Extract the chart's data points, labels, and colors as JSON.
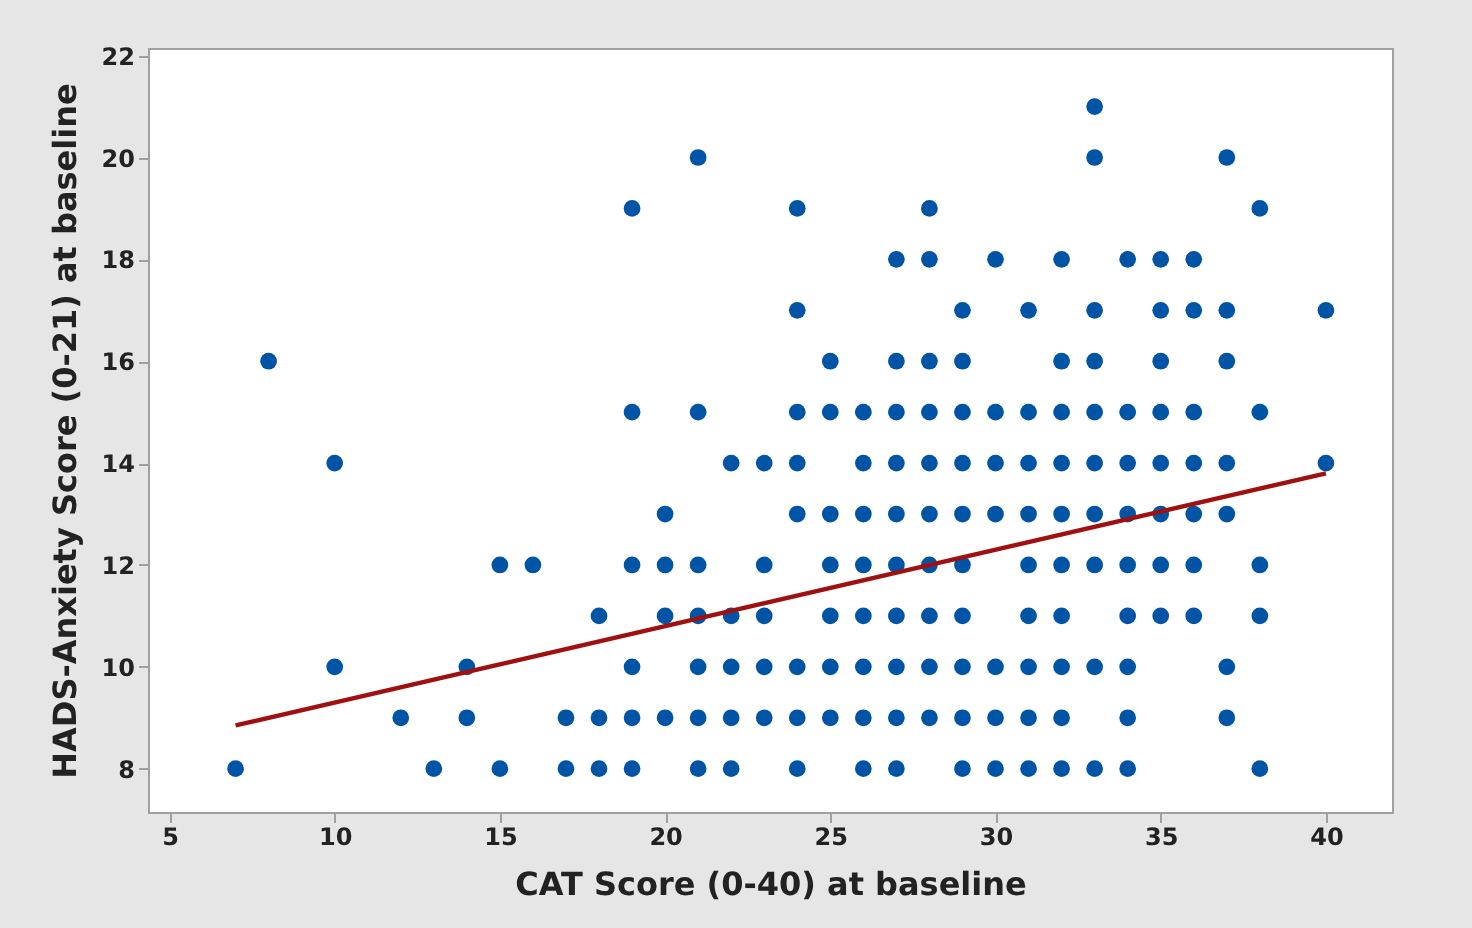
{
  "chart_data": {
    "type": "scatter",
    "xlabel": "CAT Score (0-40)  at baseline",
    "ylabel": "HADS-Anxiety Score (0-21) at baseline",
    "xlim": [
      4.35,
      42
    ],
    "xticks": [
      5,
      10,
      15,
      20,
      25,
      30,
      35,
      40
    ],
    "ylim": [
      7.15,
      22.15
    ],
    "yticks": [
      8,
      10,
      12,
      14,
      16,
      18,
      20,
      22
    ],
    "grid": false,
    "series": [
      {
        "color": "#0054a6",
        "marker": "circle",
        "x": [
          7,
          8,
          10,
          10,
          12,
          13,
          14,
          14,
          15,
          15,
          16,
          17,
          17,
          18,
          18,
          18,
          19,
          19,
          19,
          19,
          19,
          19,
          20,
          20,
          20,
          20,
          21,
          21,
          21,
          21,
          21,
          21,
          21,
          22,
          22,
          22,
          22,
          22,
          23,
          23,
          23,
          23,
          23,
          24,
          24,
          24,
          24,
          24,
          24,
          24,
          24,
          25,
          25,
          25,
          25,
          25,
          25,
          25,
          26,
          26,
          26,
          26,
          26,
          26,
          26,
          26,
          27,
          27,
          27,
          27,
          27,
          27,
          27,
          27,
          27,
          27,
          28,
          28,
          28,
          28,
          28,
          28,
          28,
          28,
          28,
          28,
          29,
          29,
          29,
          29,
          29,
          29,
          29,
          29,
          29,
          29,
          30,
          30,
          30,
          30,
          30,
          30,
          30,
          31,
          31,
          31,
          31,
          31,
          31,
          31,
          31,
          31,
          32,
          32,
          32,
          32,
          32,
          32,
          32,
          32,
          32,
          32,
          33,
          33,
          33,
          33,
          33,
          33,
          33,
          33,
          33,
          33,
          34,
          34,
          34,
          34,
          34,
          34,
          34,
          34,
          34,
          35,
          35,
          35,
          35,
          35,
          35,
          35,
          35,
          36,
          36,
          36,
          36,
          36,
          36,
          36,
          37,
          37,
          37,
          37,
          37,
          37,
          37,
          38,
          38,
          38,
          38,
          38,
          40,
          40
        ],
        "values": [
          8,
          16,
          14,
          10,
          9,
          8,
          10,
          9,
          12,
          8,
          12,
          9,
          8,
          11,
          9,
          8,
          19,
          15,
          12,
          10,
          9,
          8,
          13,
          12,
          11,
          9,
          20,
          15,
          12,
          11,
          10,
          9,
          8,
          14,
          11,
          10,
          9,
          8,
          14,
          12,
          11,
          10,
          9,
          19,
          17,
          15,
          14,
          13,
          10,
          9,
          8,
          16,
          15,
          13,
          12,
          11,
          10,
          9,
          15,
          14,
          13,
          12,
          11,
          10,
          9,
          8,
          18,
          16,
          15,
          14,
          13,
          12,
          11,
          10,
          9,
          8,
          19,
          18,
          16,
          15,
          14,
          13,
          12,
          11,
          10,
          9,
          17,
          16,
          15,
          14,
          13,
          12,
          11,
          10,
          9,
          8,
          18,
          15,
          14,
          13,
          10,
          9,
          8,
          17,
          15,
          14,
          13,
          12,
          11,
          10,
          9,
          8,
          18,
          16,
          15,
          14,
          13,
          12,
          11,
          10,
          9,
          8,
          21,
          20,
          17,
          16,
          15,
          14,
          13,
          12,
          10,
          8,
          18,
          15,
          14,
          13,
          12,
          11,
          10,
          9,
          8,
          18,
          17,
          16,
          15,
          14,
          13,
          12,
          11,
          18,
          17,
          15,
          14,
          13,
          12,
          11,
          20,
          17,
          16,
          14,
          13,
          10,
          9,
          19,
          15,
          12,
          11,
          8,
          17,
          14
        ]
      },
      {
        "type": "line",
        "color": "#a01010",
        "x": [
          7,
          40
        ],
        "values": [
          8.85,
          13.8
        ],
        "line_style": "solid"
      }
    ]
  }
}
